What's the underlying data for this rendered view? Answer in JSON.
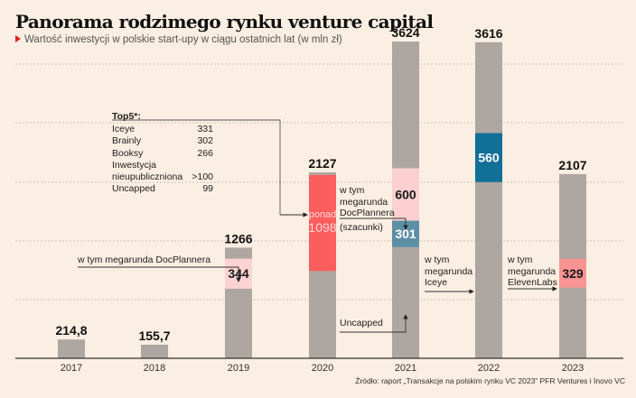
{
  "header": {
    "title": "Panorama rodzimego rynku venture capital",
    "subtitle": "Wartość inwestycji w polskie start-upy w ciągu ostatnich lat (w mln zł)"
  },
  "source": "Źródło: raport „Transakcje na polskim rynku VC 2023” PFR Ventures i Inovo VC",
  "colors": {
    "background": "#fbeee2",
    "bar": "#aea7a1",
    "docplanner_2019": "#fcd3d3",
    "estimate_2020": "#fc5d5d",
    "docplanner_2021": "#fcd0d0",
    "uncapped_2021": "#5d8fa5",
    "iceye_2022": "#116f98",
    "elevenlabs_2023": "#fa9494",
    "accent": "#e02020"
  },
  "top5": {
    "title": "Top5*:",
    "rows": [
      {
        "name": "Iceye",
        "value": "331"
      },
      {
        "name": "Brainly",
        "value": "302"
      },
      {
        "name": "Booksy",
        "value": "266"
      },
      {
        "name": "Inwestycja nieupubliczniona",
        "value": ">100"
      },
      {
        "name": "Uncapped",
        "value": "99"
      }
    ]
  },
  "annotations": {
    "docplanner_2019": "w tym megarunda DocPlannera",
    "docplanner_2021": "w tym megarunda DocPlannera",
    "szacunki": "(szacunki)",
    "iceye_2022": "w tym megarunda Iceye",
    "elevenlabs_2023": "w tym megarunda ElevenLabs",
    "uncapped_2021": "Uncapped"
  },
  "chart_data": {
    "type": "bar",
    "title": "Panorama rodzimego rynku venture capital",
    "subtitle": "Wartość inwestycji w polskie start-upy w ciągu ostatnich lat (w mln zł)",
    "xlabel": "",
    "ylabel": "mln zł",
    "ylim": [
      0,
      3624
    ],
    "grid": true,
    "categories": [
      "2017",
      "2018",
      "2019",
      "2020",
      "2021",
      "2022",
      "2023"
    ],
    "values": [
      214.8,
      155.7,
      1266,
      2127,
      3624,
      3616,
      2107
    ],
    "labels": [
      "214,8",
      "155,7",
      "1266",
      "2127",
      "3624",
      "3616",
      "2107"
    ],
    "highlights": [
      {
        "year": "2019",
        "value": 344,
        "label": "344",
        "name": "megarunda DocPlannera",
        "color_key": "docplanner_2019",
        "label_color": "#1a1a1a"
      },
      {
        "year": "2020",
        "value": 1098,
        "label": "1098",
        "prefix": "ponad",
        "name": "Top5",
        "color_key": "estimate_2020",
        "label_color": "#fbd6d6"
      },
      {
        "year": "2021",
        "value": 600,
        "label": "600",
        "name": "megarunda DocPlannera (szacunki)",
        "color_key": "docplanner_2021",
        "label_color": "#1a1a1a"
      },
      {
        "year": "2021",
        "value": 301,
        "label": "301",
        "name": "Uncapped",
        "color_key": "uncapped_2021",
        "label_color": "#ffffff"
      },
      {
        "year": "2022",
        "value": 560,
        "label": "560",
        "name": "megarunda Iceye",
        "color_key": "iceye_2022",
        "label_color": "#ffffff"
      },
      {
        "year": "2023",
        "value": 329,
        "label": "329",
        "name": "megarunda ElevenLabs",
        "color_key": "elevenlabs_2023",
        "label_color": "#1a1a1a"
      }
    ]
  }
}
